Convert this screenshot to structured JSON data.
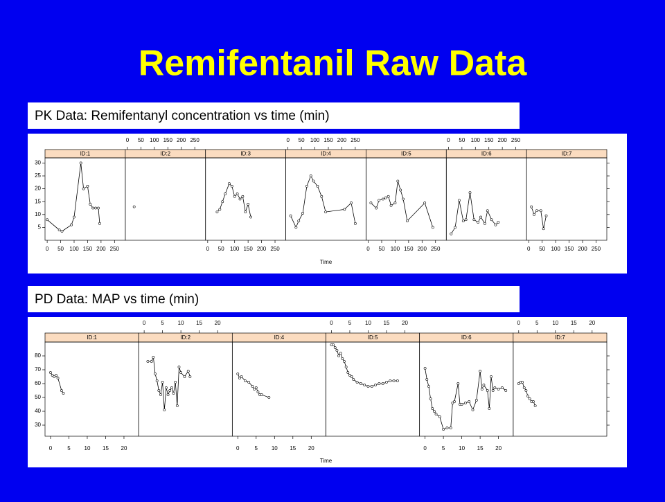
{
  "title": "Remifentanil Raw Data",
  "chart_data": [
    {
      "type": "line",
      "title": "PK Data: Remifentanyl concentration vs time (min)",
      "xlabel": "Time",
      "color": "#000000",
      "strip_color": "#fbdcc0",
      "xlim": [
        -8,
        290
      ],
      "xticks": [
        0,
        50,
        100,
        150,
        200,
        250
      ],
      "ylim": [
        0,
        32
      ],
      "yticks": [
        5,
        10,
        15,
        20,
        25,
        30
      ],
      "series": [
        {
          "name": "ID:1",
          "x": [
            0,
            45,
            55,
            90,
            100,
            125,
            135,
            150,
            160,
            170,
            180,
            190,
            195
          ],
          "values": [
            8,
            4,
            3.5,
            6,
            9,
            30,
            20,
            21,
            14,
            12.5,
            12.5,
            12.5,
            6.5
          ]
        },
        {
          "name": "ID:2",
          "x": [
            25
          ],
          "values": [
            13
          ]
        },
        {
          "name": "ID:3",
          "x": [
            35,
            45,
            55,
            65,
            80,
            90,
            100,
            110,
            120,
            130,
            140,
            150,
            160
          ],
          "values": [
            11,
            12,
            15,
            18,
            22,
            21,
            17,
            18,
            16,
            17,
            11,
            14,
            9
          ]
        },
        {
          "name": "ID:4",
          "x": [
            10,
            30,
            40,
            55,
            70,
            85,
            95,
            110,
            125,
            140,
            210,
            235,
            250
          ],
          "values": [
            9.5,
            5,
            7.5,
            10.5,
            21,
            25,
            23,
            21,
            17,
            11,
            12,
            14.5,
            6.5
          ]
        },
        {
          "name": "ID:5",
          "x": [
            10,
            30,
            40,
            55,
            65,
            75,
            85,
            100,
            110,
            120,
            130,
            145,
            210,
            240
          ],
          "values": [
            14.5,
            12.5,
            15.5,
            16,
            16.5,
            17,
            13.5,
            14.5,
            23,
            19.5,
            16,
            7.5,
            14.5,
            5
          ]
        },
        {
          "name": "ID:6",
          "x": [
            10,
            25,
            40,
            55,
            65,
            80,
            95,
            110,
            120,
            135,
            145,
            160,
            175,
            185
          ],
          "values": [
            2.5,
            5,
            15.5,
            7.5,
            8,
            18.5,
            8,
            7,
            9,
            6.5,
            11.5,
            8,
            6,
            7
          ]
        },
        {
          "name": "ID:7",
          "x": [
            10,
            20,
            30,
            45,
            55,
            65
          ],
          "values": [
            13,
            10,
            11.5,
            11.5,
            4.5,
            9.5
          ]
        }
      ]
    },
    {
      "type": "line",
      "title": "PD Data: MAP vs time (min)",
      "xlabel": "Time",
      "color": "#000000",
      "strip_color": "#fbdcc0",
      "xlim": [
        -1.5,
        24
      ],
      "xticks": [
        0,
        5,
        10,
        15,
        20
      ],
      "ylim": [
        22,
        90
      ],
      "yticks": [
        30,
        40,
        50,
        60,
        70,
        80
      ],
      "series": [
        {
          "name": "ID:1",
          "x": [
            0,
            0.5,
            1,
            1.5,
            2,
            3,
            3.5
          ],
          "values": [
            68,
            66,
            65,
            66,
            64,
            55,
            53
          ]
        },
        {
          "name": "ID:2",
          "x": [
            1,
            2,
            2.5,
            3,
            3.5,
            4,
            4.5,
            5,
            5.5,
            6,
            6.5,
            7,
            7.5,
            8,
            8.5,
            9,
            9.5,
            10,
            11,
            12,
            12.5
          ],
          "values": [
            76,
            76,
            79,
            67,
            62,
            55,
            52,
            61,
            41,
            57,
            52,
            55,
            57,
            53,
            61,
            44,
            72,
            68,
            65,
            69,
            65
          ]
        },
        {
          "name": "ID:4",
          "x": [
            0,
            0.5,
            1,
            2,
            3,
            4,
            4.5,
            5,
            5.5,
            6,
            6.5,
            8.5
          ],
          "values": [
            67,
            64,
            65,
            62,
            61,
            58,
            56,
            57,
            54,
            52,
            52,
            50
          ]
        },
        {
          "name": "ID:5",
          "x": [
            0,
            0.5,
            1,
            1.5,
            2,
            2.5,
            3,
            3.5,
            4,
            4.5,
            5,
            5.5,
            6,
            7,
            8,
            9,
            10,
            11,
            12,
            13,
            14,
            15,
            16,
            17,
            18
          ],
          "values": [
            88,
            88,
            86,
            84,
            80,
            82,
            78,
            76,
            72,
            68,
            66,
            65,
            63,
            61,
            60,
            59,
            58,
            58,
            59,
            60,
            60,
            61,
            62,
            62,
            62
          ]
        },
        {
          "name": "ID:6",
          "x": [
            0,
            0.5,
            1,
            1.5,
            2,
            2.5,
            3,
            4,
            5,
            6,
            7,
            7.5,
            8,
            9,
            9.5,
            10,
            11,
            12,
            13,
            14,
            15,
            15.5,
            16,
            17,
            17.5,
            18,
            18.5,
            19,
            20,
            21,
            22
          ],
          "values": [
            71,
            63,
            58,
            49,
            42,
            40,
            38,
            36,
            27,
            28,
            28,
            46,
            47,
            60,
            45,
            45,
            46,
            47,
            41,
            48,
            69,
            56,
            59,
            55,
            42,
            65,
            55,
            57,
            56,
            57,
            55
          ]
        },
        {
          "name": "ID:7",
          "x": [
            0,
            0.5,
            1,
            1.5,
            2,
            2.5,
            3,
            3.5,
            4,
            4.5
          ],
          "values": [
            60,
            61,
            61,
            57,
            55,
            51,
            49,
            47,
            47,
            44
          ]
        }
      ]
    }
  ]
}
